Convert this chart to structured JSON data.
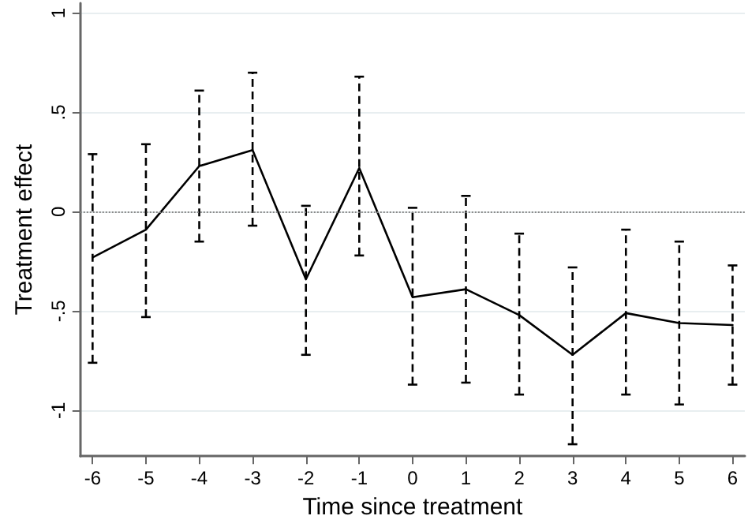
{
  "chart_data": {
    "type": "line",
    "xlabel": "Time since treatment",
    "ylabel": "Treatment effect",
    "x": [
      -6,
      -5,
      -4,
      -3,
      -2,
      -1,
      0,
      1,
      2,
      3,
      4,
      5,
      6
    ],
    "series": [
      {
        "color": "#000000",
        "values": [
          -0.23,
          -0.09,
          0.23,
          0.31,
          -0.34,
          0.22,
          -0.43,
          -0.39,
          -0.52,
          -0.72,
          -0.51,
          -0.56,
          -0.57
        ],
        "errors": [
          [
            -0.76,
            0.29
          ],
          [
            -0.53,
            0.34
          ],
          [
            -0.15,
            0.61
          ],
          [
            -0.07,
            0.7
          ],
          [
            -0.72,
            0.03
          ],
          [
            -0.22,
            0.68
          ],
          [
            -0.87,
            0.02
          ],
          [
            -0.86,
            0.08
          ],
          [
            -0.92,
            -0.11
          ],
          [
            -1.17,
            -0.28
          ],
          [
            -0.92,
            -0.09
          ],
          [
            -0.97,
            -0.15
          ],
          [
            -0.87,
            -0.27
          ]
        ]
      }
    ],
    "xlim": [
      -6.23,
      6.23
    ],
    "xticks": [
      -6,
      -5,
      -4,
      -3,
      -2,
      -1,
      0,
      1,
      2,
      3,
      4,
      5,
      6
    ],
    "ylim": [
      -1.23,
      1.05
    ],
    "yticks": [
      {
        "value": -1,
        "label": "-1"
      },
      {
        "value": -0.5,
        "label": "-.5"
      },
      {
        "value": 0,
        "label": "0"
      },
      {
        "value": 0.5,
        "label": ".5"
      },
      {
        "value": 1,
        "label": "1"
      }
    ],
    "ref_lines": [
      {
        "axis": "y",
        "value": 0,
        "color": "#888888",
        "line_style": "dotted"
      }
    ],
    "grid": "y",
    "marker": "none",
    "line_style": "solid"
  }
}
